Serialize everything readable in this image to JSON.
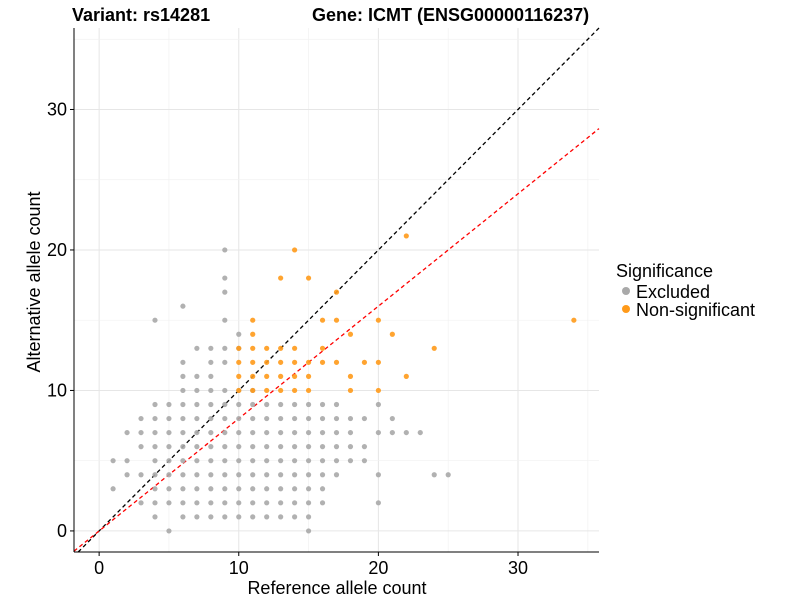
{
  "chart_data": {
    "type": "scatter",
    "title_left": "Variant: rs14281",
    "title_right": "Gene: ICMT (ENSG00000116237)",
    "xlabel": "Reference allele count",
    "ylabel": "Alternative allele count",
    "xlim": [
      -1.8,
      35.8
    ],
    "ylim": [
      -1.5,
      35.8
    ],
    "x_ticks": [
      0,
      10,
      20,
      30
    ],
    "y_ticks": [
      0,
      10,
      20,
      30
    ],
    "grid": true,
    "legend": {
      "title": "Significance",
      "placement": "right",
      "entries": [
        {
          "label": "Excluded",
          "color": "#a9a9a9"
        },
        {
          "label": "Non-significant",
          "color": "#ff9a1a"
        }
      ]
    },
    "reference_lines": [
      {
        "name": "identity",
        "slope": 1.0,
        "intercept": 0,
        "color": "#000000",
        "dash": true
      },
      {
        "name": "fitted",
        "slope": 0.8,
        "intercept": 0,
        "color": "#ff0000",
        "dash": true
      }
    ],
    "series": [
      {
        "name": "Excluded",
        "color": "#a9a9a9",
        "points": [
          [
            1,
            3
          ],
          [
            1,
            5
          ],
          [
            2,
            4
          ],
          [
            2,
            5
          ],
          [
            2,
            7
          ],
          [
            3,
            2
          ],
          [
            3,
            4
          ],
          [
            3,
            6
          ],
          [
            3,
            7
          ],
          [
            3,
            8
          ],
          [
            4,
            1
          ],
          [
            4,
            2
          ],
          [
            4,
            3
          ],
          [
            4,
            4
          ],
          [
            4,
            5
          ],
          [
            4,
            6
          ],
          [
            4,
            7
          ],
          [
            4,
            8
          ],
          [
            4,
            9
          ],
          [
            4,
            15
          ],
          [
            5,
            0
          ],
          [
            5,
            2
          ],
          [
            5,
            3
          ],
          [
            5,
            4
          ],
          [
            5,
            5
          ],
          [
            5,
            6
          ],
          [
            5,
            7
          ],
          [
            5,
            8
          ],
          [
            5,
            9
          ],
          [
            6,
            1
          ],
          [
            6,
            2
          ],
          [
            6,
            3
          ],
          [
            6,
            4
          ],
          [
            6,
            5
          ],
          [
            6,
            6
          ],
          [
            6,
            7
          ],
          [
            6,
            8
          ],
          [
            6,
            9
          ],
          [
            6,
            10
          ],
          [
            6,
            11
          ],
          [
            6,
            12
          ],
          [
            6,
            16
          ],
          [
            7,
            1
          ],
          [
            7,
            2
          ],
          [
            7,
            3
          ],
          [
            7,
            4
          ],
          [
            7,
            5
          ],
          [
            7,
            6
          ],
          [
            7,
            7
          ],
          [
            7,
            8
          ],
          [
            7,
            9
          ],
          [
            7,
            10
          ],
          [
            7,
            11
          ],
          [
            7,
            13
          ],
          [
            8,
            1
          ],
          [
            8,
            2
          ],
          [
            8,
            3
          ],
          [
            8,
            4
          ],
          [
            8,
            5
          ],
          [
            8,
            6
          ],
          [
            8,
            7
          ],
          [
            8,
            8
          ],
          [
            8,
            9
          ],
          [
            8,
            10
          ],
          [
            8,
            11
          ],
          [
            8,
            12
          ],
          [
            8,
            13
          ],
          [
            9,
            1
          ],
          [
            9,
            2
          ],
          [
            9,
            3
          ],
          [
            9,
            4
          ],
          [
            9,
            5
          ],
          [
            9,
            6
          ],
          [
            9,
            7
          ],
          [
            9,
            8
          ],
          [
            9,
            9
          ],
          [
            9,
            10
          ],
          [
            9,
            12
          ],
          [
            9,
            13
          ],
          [
            9,
            15
          ],
          [
            9,
            17
          ],
          [
            9,
            18
          ],
          [
            9,
            20
          ],
          [
            10,
            1
          ],
          [
            10,
            2
          ],
          [
            10,
            3
          ],
          [
            10,
            4
          ],
          [
            10,
            5
          ],
          [
            10,
            6
          ],
          [
            10,
            7
          ],
          [
            10,
            8
          ],
          [
            10,
            9
          ],
          [
            10,
            10
          ],
          [
            10,
            13
          ],
          [
            10,
            14
          ],
          [
            11,
            1
          ],
          [
            11,
            2
          ],
          [
            11,
            3
          ],
          [
            11,
            4
          ],
          [
            11,
            5
          ],
          [
            11,
            6
          ],
          [
            11,
            7
          ],
          [
            11,
            8
          ],
          [
            11,
            9
          ],
          [
            11,
            10
          ],
          [
            12,
            1
          ],
          [
            12,
            2
          ],
          [
            12,
            3
          ],
          [
            12,
            4
          ],
          [
            12,
            5
          ],
          [
            12,
            6
          ],
          [
            12,
            7
          ],
          [
            12,
            8
          ],
          [
            12,
            9
          ],
          [
            13,
            1
          ],
          [
            13,
            2
          ],
          [
            13,
            3
          ],
          [
            13,
            4
          ],
          [
            13,
            5
          ],
          [
            13,
            6
          ],
          [
            13,
            7
          ],
          [
            13,
            8
          ],
          [
            13,
            9
          ],
          [
            14,
            1
          ],
          [
            14,
            2
          ],
          [
            14,
            3
          ],
          [
            14,
            4
          ],
          [
            14,
            5
          ],
          [
            14,
            6
          ],
          [
            14,
            7
          ],
          [
            14,
            8
          ],
          [
            14,
            9
          ],
          [
            15,
            0
          ],
          [
            15,
            1
          ],
          [
            15,
            2
          ],
          [
            15,
            3
          ],
          [
            15,
            4
          ],
          [
            15,
            5
          ],
          [
            15,
            6
          ],
          [
            15,
            7
          ],
          [
            15,
            8
          ],
          [
            15,
            9
          ],
          [
            16,
            2
          ],
          [
            16,
            3
          ],
          [
            16,
            4
          ],
          [
            16,
            5
          ],
          [
            16,
            6
          ],
          [
            16,
            7
          ],
          [
            16,
            8
          ],
          [
            16,
            9
          ],
          [
            17,
            4
          ],
          [
            17,
            5
          ],
          [
            17,
            6
          ],
          [
            17,
            7
          ],
          [
            17,
            8
          ],
          [
            17,
            9
          ],
          [
            18,
            5
          ],
          [
            18,
            6
          ],
          [
            18,
            7
          ],
          [
            18,
            8
          ],
          [
            19,
            5
          ],
          [
            19,
            6
          ],
          [
            19,
            8
          ],
          [
            20,
            2
          ],
          [
            20,
            4
          ],
          [
            20,
            7
          ],
          [
            20,
            9
          ],
          [
            21,
            7
          ],
          [
            21,
            8
          ],
          [
            22,
            7
          ],
          [
            23,
            7
          ],
          [
            24,
            4
          ],
          [
            25,
            4
          ]
        ]
      },
      {
        "name": "Non-significant",
        "color": "#ff9a1a",
        "points": [
          [
            10,
            10
          ],
          [
            10,
            11
          ],
          [
            10,
            12
          ],
          [
            10,
            13
          ],
          [
            11,
            10
          ],
          [
            11,
            11
          ],
          [
            11,
            12
          ],
          [
            11,
            13
          ],
          [
            11,
            14
          ],
          [
            11,
            15
          ],
          [
            12,
            10
          ],
          [
            12,
            11
          ],
          [
            12,
            12
          ],
          [
            12,
            13
          ],
          [
            13,
            10
          ],
          [
            13,
            11
          ],
          [
            13,
            12
          ],
          [
            13,
            13
          ],
          [
            13,
            18
          ],
          [
            14,
            10
          ],
          [
            14,
            11
          ],
          [
            14,
            12
          ],
          [
            14,
            13
          ],
          [
            14,
            20
          ],
          [
            15,
            10
          ],
          [
            15,
            11
          ],
          [
            15,
            12
          ],
          [
            15,
            18
          ],
          [
            16,
            12
          ],
          [
            16,
            13
          ],
          [
            16,
            15
          ],
          [
            17,
            12
          ],
          [
            17,
            15
          ],
          [
            17,
            17
          ],
          [
            18,
            10
          ],
          [
            18,
            11
          ],
          [
            18,
            14
          ],
          [
            19,
            12
          ],
          [
            20,
            10
          ],
          [
            20,
            12
          ],
          [
            20,
            15
          ],
          [
            21,
            14
          ],
          [
            22,
            11
          ],
          [
            22,
            21
          ],
          [
            24,
            13
          ],
          [
            34,
            15
          ]
        ]
      }
    ]
  }
}
